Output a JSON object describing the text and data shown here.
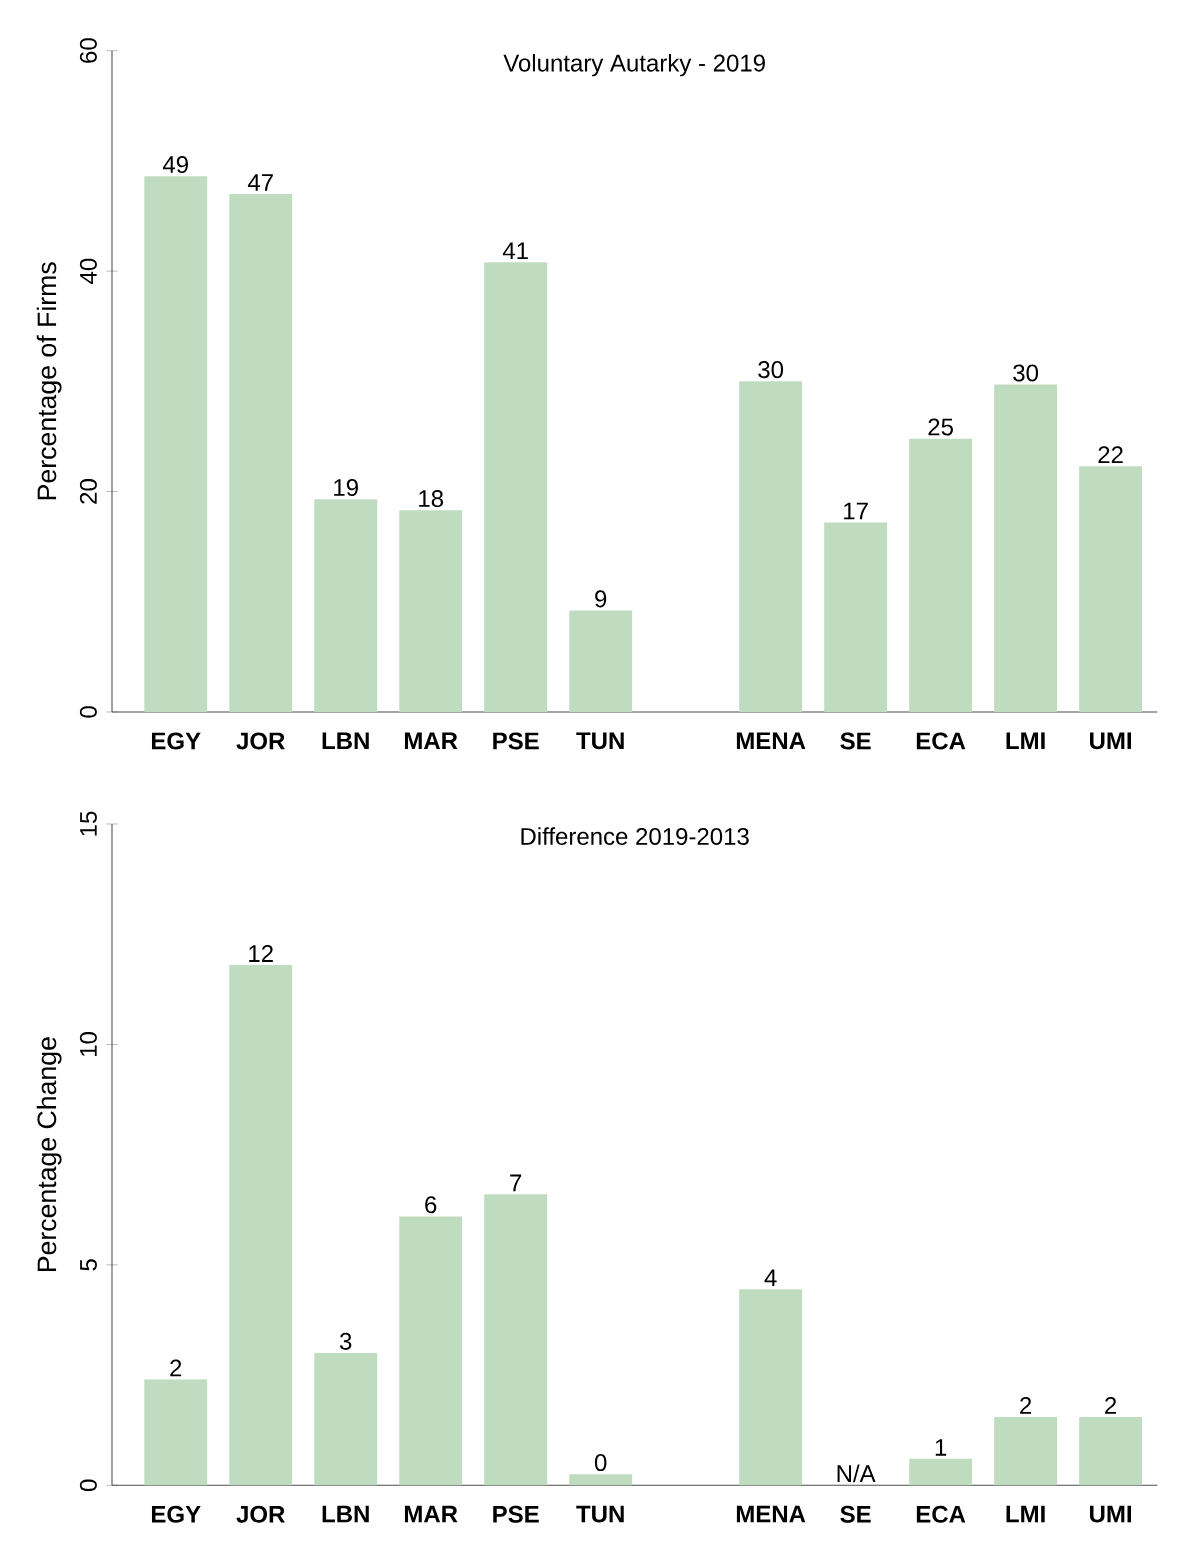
{
  "chart_data": [
    {
      "type": "bar",
      "title": "Voluntary Autarky - 2019",
      "ylabel": "Percentage of Firms",
      "categories": [
        "EGY",
        "JOR",
        "LBN",
        "MAR",
        "PSE",
        "TUN",
        null,
        "MENA",
        "SE",
        "ECA",
        "LMI",
        "UMI"
      ],
      "values": [
        48.6,
        47.0,
        19.3,
        18.3,
        40.8,
        9.2,
        null,
        30.0,
        17.2,
        24.8,
        29.7,
        22.3
      ],
      "value_labels": [
        "49",
        "47",
        "19",
        "18",
        "41",
        "9",
        null,
        "30",
        "17",
        "25",
        "30",
        "22"
      ],
      "color": "#c0dcc0",
      "ylim": [
        0,
        60
      ],
      "yticks": [
        0,
        20,
        40,
        60
      ]
    },
    {
      "type": "bar",
      "title": "Difference 2019-2013",
      "ylabel": "Percentage Change",
      "categories": [
        "EGY",
        "JOR",
        "LBN",
        "MAR",
        "PSE",
        "TUN",
        null,
        "MENA",
        "SE",
        "ECA",
        "LMI",
        "UMI"
      ],
      "values": [
        2.4,
        11.8,
        3.0,
        6.1,
        6.6,
        0.25,
        null,
        4.45,
        null,
        0.6,
        1.55,
        1.55
      ],
      "value_labels": [
        "2",
        "12",
        "3",
        "6",
        "7",
        "0",
        null,
        "4",
        "N/A",
        "1",
        "2",
        "2"
      ],
      "color": "#c0dcc0",
      "ylim": [
        0,
        15
      ],
      "yticks": [
        0,
        5,
        10,
        15
      ]
    }
  ]
}
